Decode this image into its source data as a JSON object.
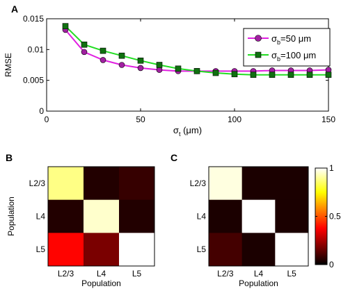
{
  "panels": {
    "a": "A",
    "b": "B",
    "c": "C"
  },
  "colors": {
    "series_magenta": "#e020e0",
    "marker_magenta": "#a020a0",
    "series_green": "#22dd22",
    "marker_green": "#107010"
  },
  "chart_data": [
    {
      "type": "line",
      "panel": "A",
      "xlabel_symbol": "σ",
      "xlabel_sub": "t",
      "xlabel_unit": " (μm)",
      "ylabel": "RMSE",
      "xlim": [
        0,
        150
      ],
      "ylim": [
        0,
        0.015
      ],
      "xticks": [
        "0",
        "50",
        "100",
        "150"
      ],
      "xtick_values": [
        0,
        50,
        100,
        150
      ],
      "yticks": [
        "0",
        "0.005",
        "0.01",
        "0.015"
      ],
      "ytick_values": [
        0,
        0.005,
        0.01,
        0.015
      ],
      "grid": false,
      "legend_position": "top-right",
      "x": [
        10,
        20,
        30,
        40,
        50,
        60,
        70,
        80,
        90,
        100,
        110,
        120,
        130,
        140,
        150
      ],
      "series": [
        {
          "legend_symbol": "σ",
          "legend_sub": "b",
          "legend_rest": "=50 μm",
          "color": "#e020e0",
          "marker": "circle",
          "values": [
            0.0132,
            0.0096,
            0.0083,
            0.0075,
            0.007,
            0.0067,
            0.0065,
            0.0065,
            0.0065,
            0.0065,
            0.0065,
            0.0066,
            0.0066,
            0.0066,
            0.0067
          ]
        },
        {
          "legend_symbol": "σ",
          "legend_sub": "b",
          "legend_rest": "=100 μm",
          "color": "#22dd22",
          "marker": "square",
          "values": [
            0.0138,
            0.0108,
            0.0098,
            0.009,
            0.0082,
            0.0075,
            0.0069,
            0.0065,
            0.0062,
            0.006,
            0.0059,
            0.0059,
            0.0059,
            0.0059,
            0.0059
          ]
        }
      ]
    },
    {
      "type": "heatmap",
      "panel": "B",
      "xlabel": "Population",
      "ylabel": "Population",
      "rows": [
        "L2/3",
        "L4",
        "L5"
      ],
      "cols": [
        "L2/3",
        "L4",
        "L5"
      ],
      "values": [
        [
          0.88,
          0.05,
          0.08
        ],
        [
          0.05,
          0.95,
          0.05
        ],
        [
          0.38,
          0.18,
          1.0
        ]
      ]
    },
    {
      "type": "heatmap",
      "panel": "C",
      "xlabel": "Population",
      "rows": [
        "L2/3",
        "L4",
        "L5"
      ],
      "cols": [
        "L2/3",
        "L4",
        "L5"
      ],
      "values": [
        [
          0.97,
          0.04,
          0.04
        ],
        [
          0.04,
          1.0,
          0.04
        ],
        [
          0.1,
          0.04,
          1.0
        ]
      ],
      "colorbar": {
        "min": 0,
        "max": 1,
        "ticks": [
          "0",
          "0.5",
          "1"
        ],
        "tick_values": [
          0,
          0.5,
          1
        ]
      }
    }
  ]
}
